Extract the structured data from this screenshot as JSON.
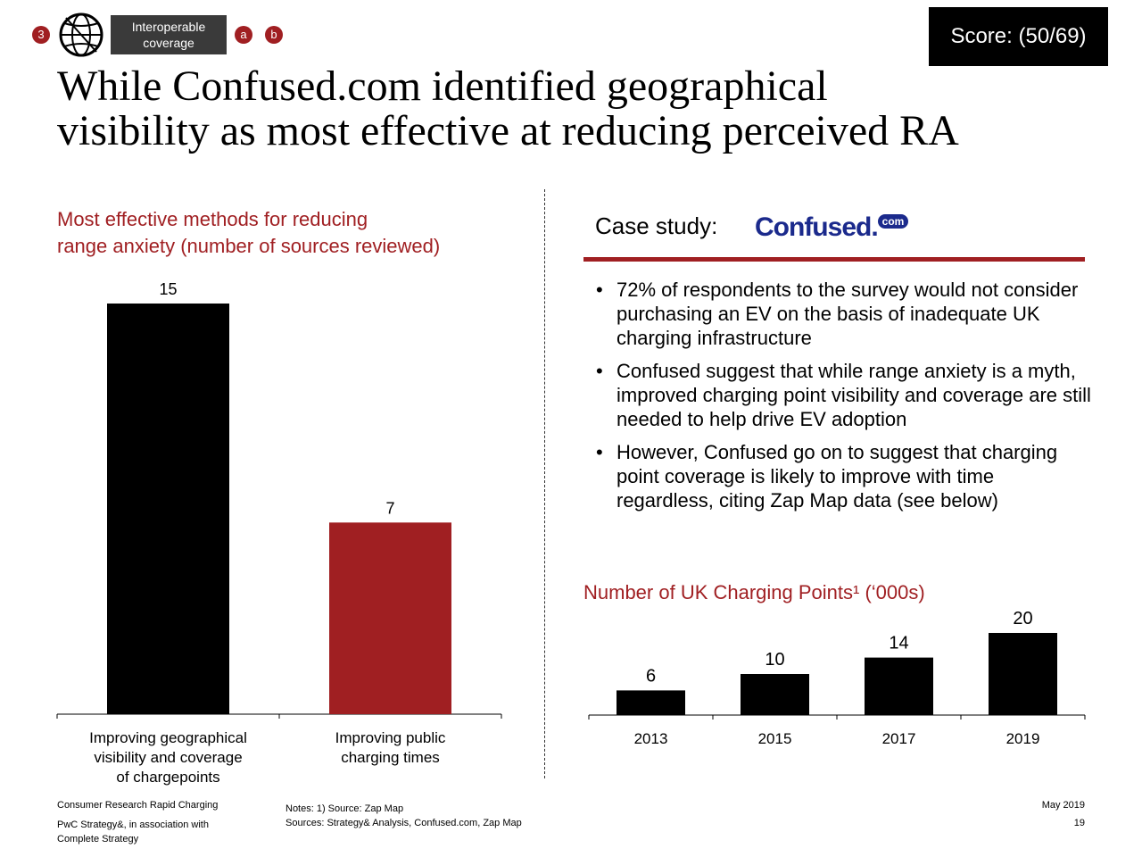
{
  "header": {
    "step_badge": "3",
    "tag_line1": "Interoperable",
    "tag_line2": "coverage",
    "sub_badge_a": "a",
    "sub_badge_b": "b",
    "score": "Score: (50/69)"
  },
  "title_line1": "While Confused.com identified geographical",
  "title_line2": "visibility as most effective at reducing perceived RA",
  "left_section": {
    "title_line1": "Most effective methods for reducing",
    "title_line2": "range anxiety (number of sources reviewed)"
  },
  "right_section": {
    "case_label": "Case study:",
    "logo_text": "Confused.",
    "logo_com": "com",
    "bullets": [
      "72% of respondents to the survey would not consider purchasing an EV on the basis of inadequate UK charging infrastructure",
      "Confused suggest that while range anxiety is a myth, improved charging point visibility and coverage are still needed to help drive EV adoption",
      "However, Confused go on to suggest that charging point coverage is likely to improve with time regardless, citing Zap Map data (see below)"
    ],
    "bullet_symbol": "•",
    "chart_title": "Number of UK Charging Points¹ (‘000s)"
  },
  "chart_data": [
    {
      "type": "bar",
      "title": "Most effective methods for reducing range anxiety (number of sources reviewed)",
      "categories": [
        [
          "Improving geographical",
          "visibility and coverage",
          "of chargepoints"
        ],
        [
          "Improving public",
          "charging times"
        ]
      ],
      "values": [
        15,
        7
      ],
      "ylim": [
        0,
        15
      ],
      "grid": false,
      "colors": [
        "#000000",
        "#a01f22"
      ]
    },
    {
      "type": "bar",
      "title": "Number of UK Charging Points¹ (‘000s)",
      "categories": [
        "2013",
        "2015",
        "2017",
        "2019"
      ],
      "values": [
        6,
        10,
        14,
        20
      ],
      "ylim": [
        0,
        20
      ],
      "grid": false,
      "colors": [
        "#000000",
        "#000000",
        "#000000",
        "#000000"
      ]
    }
  ],
  "footer": {
    "left_line1": "Consumer Research Rapid Charging",
    "left_line2": "PwC Strategy&, in association with",
    "left_line3": "Complete Strategy",
    "notes_line1": "Notes: 1) Source: Zap Map",
    "notes_line2": "Sources: Strategy& Analysis, Confused.com, Zap Map",
    "date": "May 2019",
    "page": "19"
  },
  "colors": {
    "accent_red": "#a01f22",
    "logo_blue": "#1b2a8c"
  },
  "icons": {
    "globe": "globe-icon"
  }
}
